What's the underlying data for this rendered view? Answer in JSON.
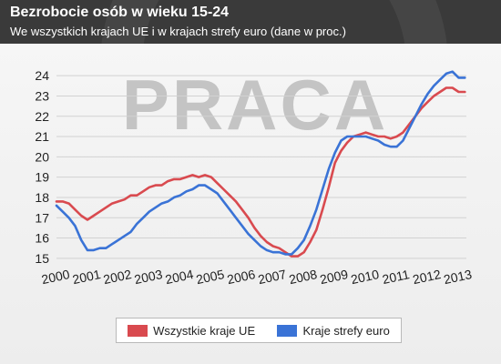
{
  "header": {
    "title": "Bezrobocie osób w wieku 15-24",
    "subtitle": "We wszystkich krajach UE i w krajach strefy euro (dane w proc.)"
  },
  "watermark": "PRACA",
  "colors": {
    "eu": "#d94a4f",
    "euro": "#3a73d6",
    "header_bg": "#3a3a3a"
  },
  "chart_data": {
    "type": "line",
    "title": "Bezrobocie osób w wieku 15-24",
    "subtitle": "We wszystkich krajach UE i w krajach strefy euro (dane w proc.)",
    "xlabel": "",
    "ylabel": "",
    "ylim": [
      14.5,
      24.5
    ],
    "xlim": [
      2000.0,
      2013.25
    ],
    "y_ticks": [
      15,
      16,
      17,
      18,
      19,
      20,
      21,
      22,
      23,
      24
    ],
    "x_ticks": [
      "2000",
      "2001",
      "2002",
      "2003",
      "2004",
      "2005",
      "2006",
      "2007",
      "2008",
      "2009",
      "2010",
      "2011",
      "2012",
      "2013"
    ],
    "grid": true,
    "legend_position": "bottom",
    "series": [
      {
        "name": "Wszystkie kraje UE",
        "x": [
          2000.0,
          2000.2,
          2000.4,
          2000.6,
          2000.8,
          2001.0,
          2001.2,
          2001.4,
          2001.6,
          2001.8,
          2002.0,
          2002.2,
          2002.4,
          2002.6,
          2002.8,
          2003.0,
          2003.2,
          2003.4,
          2003.6,
          2003.8,
          2004.0,
          2004.2,
          2004.4,
          2004.6,
          2004.8,
          2005.0,
          2005.2,
          2005.4,
          2005.6,
          2005.8,
          2006.0,
          2006.2,
          2006.4,
          2006.6,
          2006.8,
          2007.0,
          2007.2,
          2007.4,
          2007.6,
          2007.8,
          2008.0,
          2008.2,
          2008.4,
          2008.6,
          2008.8,
          2009.0,
          2009.2,
          2009.4,
          2009.6,
          2009.8,
          2010.0,
          2010.2,
          2010.4,
          2010.6,
          2010.8,
          2011.0,
          2011.2,
          2011.4,
          2011.6,
          2011.8,
          2012.0,
          2012.2,
          2012.4,
          2012.6,
          2012.8,
          2013.0,
          2013.2
        ],
        "values": [
          17.8,
          17.8,
          17.7,
          17.4,
          17.1,
          16.9,
          17.1,
          17.3,
          17.5,
          17.7,
          17.8,
          17.9,
          18.1,
          18.1,
          18.3,
          18.5,
          18.6,
          18.6,
          18.8,
          18.9,
          18.9,
          19.0,
          19.1,
          19.0,
          19.1,
          19.0,
          18.7,
          18.4,
          18.1,
          17.8,
          17.4,
          17.0,
          16.5,
          16.1,
          15.8,
          15.6,
          15.5,
          15.3,
          15.1,
          15.1,
          15.3,
          15.8,
          16.4,
          17.4,
          18.5,
          19.7,
          20.3,
          20.7,
          21.0,
          21.1,
          21.2,
          21.1,
          21.0,
          21.0,
          20.9,
          21.0,
          21.2,
          21.6,
          22.0,
          22.4,
          22.7,
          23.0,
          23.2,
          23.4,
          23.4,
          23.2,
          23.2
        ]
      },
      {
        "name": "Kraje strefy euro",
        "x": [
          2000.0,
          2000.2,
          2000.4,
          2000.6,
          2000.8,
          2001.0,
          2001.2,
          2001.4,
          2001.6,
          2001.8,
          2002.0,
          2002.2,
          2002.4,
          2002.6,
          2002.8,
          2003.0,
          2003.2,
          2003.4,
          2003.6,
          2003.8,
          2004.0,
          2004.2,
          2004.4,
          2004.6,
          2004.8,
          2005.0,
          2005.2,
          2005.4,
          2005.6,
          2005.8,
          2006.0,
          2006.2,
          2006.4,
          2006.6,
          2006.8,
          2007.0,
          2007.2,
          2007.4,
          2007.6,
          2007.8,
          2008.0,
          2008.2,
          2008.4,
          2008.6,
          2008.8,
          2009.0,
          2009.2,
          2009.4,
          2009.6,
          2009.8,
          2010.0,
          2010.2,
          2010.4,
          2010.6,
          2010.8,
          2011.0,
          2011.2,
          2011.4,
          2011.6,
          2011.8,
          2012.0,
          2012.2,
          2012.4,
          2012.6,
          2012.8,
          2013.0,
          2013.2
        ],
        "values": [
          17.6,
          17.3,
          17.0,
          16.6,
          15.9,
          15.4,
          15.4,
          15.5,
          15.5,
          15.7,
          15.9,
          16.1,
          16.3,
          16.7,
          17.0,
          17.3,
          17.5,
          17.7,
          17.8,
          18.0,
          18.1,
          18.3,
          18.4,
          18.6,
          18.6,
          18.4,
          18.2,
          17.8,
          17.4,
          17.0,
          16.6,
          16.2,
          15.9,
          15.6,
          15.4,
          15.3,
          15.3,
          15.2,
          15.2,
          15.5,
          15.9,
          16.6,
          17.4,
          18.4,
          19.4,
          20.2,
          20.8,
          21.0,
          21.0,
          21.0,
          21.0,
          20.9,
          20.8,
          20.6,
          20.5,
          20.5,
          20.8,
          21.4,
          22.0,
          22.6,
          23.1,
          23.5,
          23.8,
          24.1,
          24.2,
          23.9,
          23.9
        ]
      }
    ]
  }
}
